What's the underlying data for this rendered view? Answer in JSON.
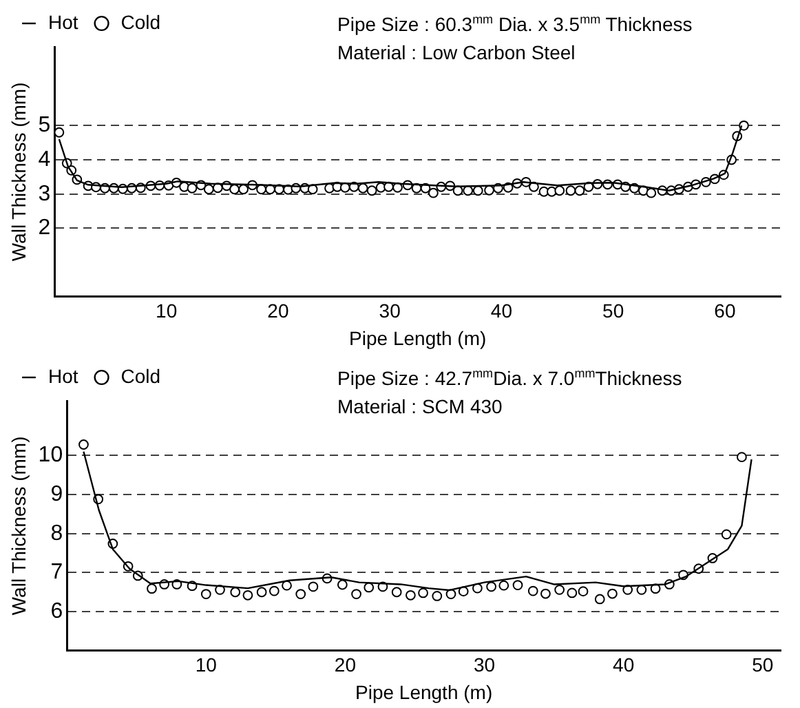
{
  "chart_data": [
    {
      "type": "scatter",
      "title": "Pipe Size : 60.3$^{mm}$ Dia. x 3.5$^{mm}$ Thickness",
      "subtitle": "Material : Low Carbon Steel",
      "xlabel": "Pipe Length (m)",
      "ylabel": "Wall Thickness (mm)",
      "xlim": [
        0,
        65
      ],
      "ylim": [
        0,
        7.3
      ],
      "xticks": [
        10,
        20,
        30,
        40,
        50,
        60
      ],
      "yticks": [
        2,
        3,
        4,
        5
      ],
      "grid": "y",
      "legend": "top left",
      "series": [
        {
          "name": "Hot",
          "type": "line",
          "color": "#000000",
          "marker": "none",
          "line_style": "solid",
          "x": [
            0.4,
            1.2,
            2,
            3,
            6,
            10,
            11,
            14,
            18,
            22,
            25,
            27,
            29,
            31,
            34,
            36,
            40,
            42,
            45,
            48,
            50,
            53,
            55,
            57,
            59,
            60,
            60.7,
            61.5
          ],
          "values": [
            4.6,
            3.8,
            3.4,
            3.27,
            3.2,
            3.3,
            3.37,
            3.3,
            3.27,
            3.22,
            3.32,
            3.3,
            3.35,
            3.3,
            3.25,
            3.22,
            3.25,
            3.35,
            3.25,
            3.32,
            3.33,
            3.2,
            3.1,
            3.25,
            3.45,
            3.6,
            4.2,
            5.0
          ]
        },
        {
          "name": "Cold",
          "type": "scatter",
          "color": "#000000",
          "marker": "circle",
          "x": [
            0.4,
            1.1,
            1.5,
            2,
            3,
            3.7,
            4.5,
            5.3,
            6.1,
            6.9,
            7.7,
            8.6,
            9.4,
            10.2,
            10.9,
            11.6,
            12.3,
            13.1,
            13.8,
            14.6,
            15.4,
            16.1,
            16.9,
            17.7,
            18.5,
            19.3,
            20.1,
            20.9,
            21.6,
            22.4,
            23.1,
            24.6,
            25.3,
            26,
            26.8,
            27.6,
            28.4,
            29.2,
            29.9,
            30.7,
            31.6,
            32.4,
            33.2,
            33.9,
            34.6,
            35.4,
            36.1,
            37,
            37.9,
            38.9,
            39.7,
            40.6,
            41.4,
            42.2,
            42.9,
            43.8,
            44.5,
            45.2,
            46.2,
            47,
            47.8,
            48.6,
            49.5,
            50.4,
            51.1,
            51.9,
            52.7,
            53.4,
            54.4,
            55.2,
            55.9,
            56.7,
            57.4,
            58.3,
            59.1,
            59.9,
            60.6,
            61.1,
            61.7
          ],
          "values": [
            4.8,
            3.9,
            3.69,
            3.42,
            3.24,
            3.2,
            3.17,
            3.17,
            3.15,
            3.17,
            3.18,
            3.24,
            3.25,
            3.25,
            3.33,
            3.21,
            3.17,
            3.26,
            3.14,
            3.18,
            3.24,
            3.14,
            3.14,
            3.26,
            3.14,
            3.14,
            3.14,
            3.13,
            3.17,
            3.17,
            3.14,
            3.17,
            3.21,
            3.19,
            3.21,
            3.17,
            3.1,
            3.19,
            3.21,
            3.19,
            3.26,
            3.17,
            3.17,
            3.03,
            3.21,
            3.24,
            3.1,
            3.1,
            3.1,
            3.11,
            3.17,
            3.19,
            3.31,
            3.35,
            3.21,
            3.07,
            3.07,
            3.1,
            3.1,
            3.1,
            3.21,
            3.29,
            3.28,
            3.28,
            3.21,
            3.17,
            3.1,
            3.03,
            3.1,
            3.1,
            3.14,
            3.21,
            3.28,
            3.35,
            3.44,
            3.56,
            4.0,
            4.69,
            5.0
          ]
        }
      ]
    },
    {
      "type": "scatter",
      "title": "Pipe Size : 42.7$^{mm}$Dia. x 7.0$^{mm}$Thickness",
      "subtitle": "Material : SCM 430",
      "xlabel": "Pipe Length (m)",
      "ylabel": "Wall Thickness (mm)",
      "xlim": [
        0,
        51.3
      ],
      "ylim": [
        5,
        11.4
      ],
      "xticks": [
        10,
        20,
        30,
        40,
        50
      ],
      "yticks": [
        6,
        7,
        8,
        9,
        10
      ],
      "grid": "y",
      "legend": "top left",
      "series": [
        {
          "name": "Hot",
          "type": "line",
          "color": "#000000",
          "marker": "none",
          "line_style": "solid",
          "x": [
            1.2,
            2.3,
            3.3,
            4.5,
            6,
            8,
            10,
            13,
            16,
            19,
            21,
            24,
            26,
            27.5,
            30,
            33,
            35,
            38,
            40,
            43,
            44.5,
            46,
            47.5,
            48.5,
            49.2
          ],
          "values": [
            10.1,
            8.6,
            7.6,
            7.1,
            6.72,
            6.78,
            6.68,
            6.6,
            6.8,
            6.88,
            6.75,
            6.7,
            6.6,
            6.55,
            6.75,
            6.9,
            6.7,
            6.75,
            6.65,
            6.7,
            6.9,
            7.25,
            7.6,
            8.2,
            9.9
          ]
        },
        {
          "name": "Cold",
          "type": "scatter",
          "color": "#000000",
          "marker": "circle",
          "x": [
            1.2,
            2.25,
            3.3,
            4.4,
            5.1,
            6.1,
            7,
            7.9,
            9,
            10,
            11,
            12.1,
            13,
            14,
            14.9,
            15.8,
            16.8,
            17.7,
            18.7,
            19.8,
            20.8,
            21.7,
            22.7,
            23.7,
            24.7,
            25.6,
            26.6,
            27.6,
            28.5,
            29.5,
            30.5,
            31.4,
            32.4,
            33.5,
            34.4,
            35.4,
            36.3,
            37.1,
            38.3,
            39.2,
            40.3,
            41.3,
            42.3,
            43.3,
            44.3,
            45.4,
            46.4,
            47.4,
            48.5
          ],
          "values": [
            10.28,
            8.88,
            7.74,
            7.16,
            6.92,
            6.59,
            6.7,
            6.7,
            6.66,
            6.45,
            6.56,
            6.5,
            6.42,
            6.5,
            6.53,
            6.67,
            6.45,
            6.64,
            6.85,
            6.69,
            6.45,
            6.62,
            6.64,
            6.5,
            6.42,
            6.48,
            6.4,
            6.45,
            6.52,
            6.6,
            6.64,
            6.67,
            6.68,
            6.53,
            6.46,
            6.56,
            6.48,
            6.52,
            6.32,
            6.46,
            6.56,
            6.56,
            6.59,
            6.7,
            6.94,
            7.1,
            7.37,
            7.98,
            9.96
          ]
        }
      ]
    }
  ]
}
